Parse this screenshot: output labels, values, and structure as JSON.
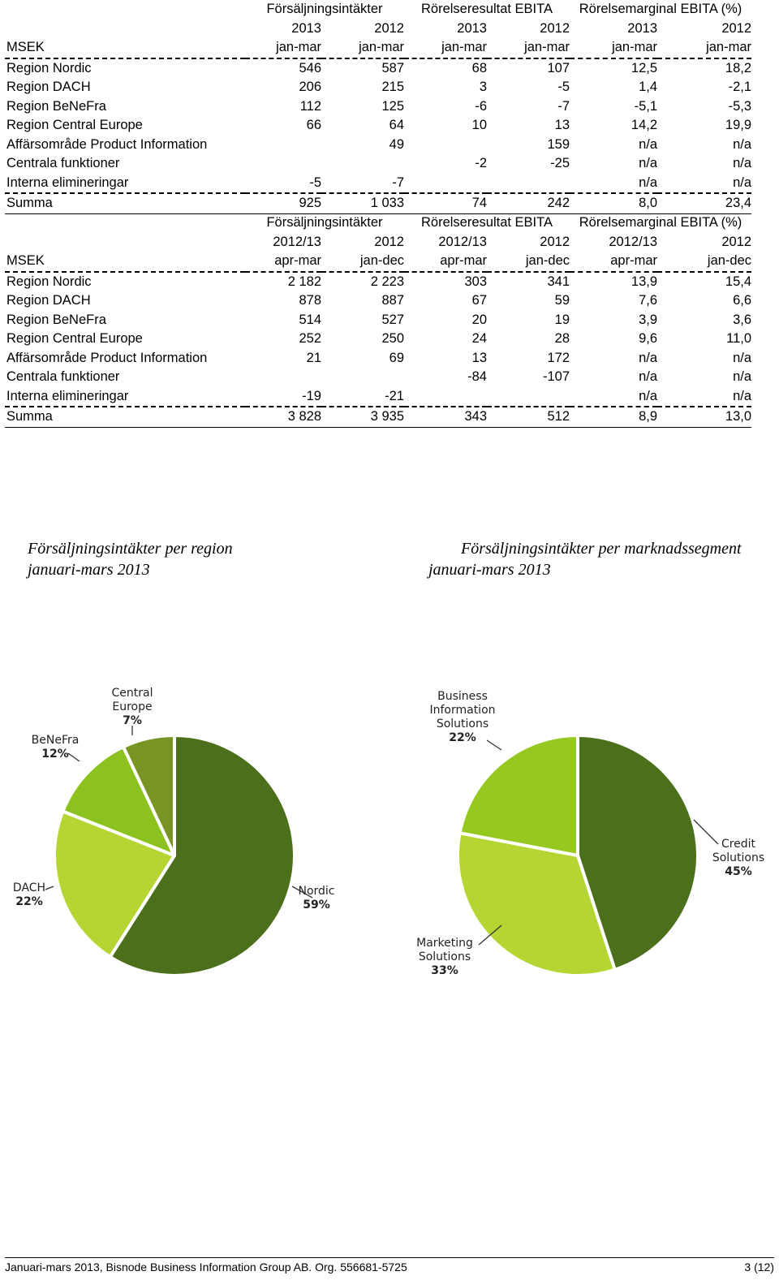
{
  "table1": {
    "group_headers": [
      "Försäljningsintäkter",
      "Rörelseresultat EBITA",
      "Rörelsemarginal EBITA (%)"
    ],
    "years": [
      "2013",
      "2012",
      "2013",
      "2012",
      "2013",
      "2012"
    ],
    "row_header": "MSEK",
    "periods": [
      "jan-mar",
      "jan-mar",
      "jan-mar",
      "jan-mar",
      "jan-mar",
      "jan-mar"
    ],
    "rows": [
      {
        "label": "Region Nordic",
        "values": [
          "546",
          "587",
          "68",
          "107",
          "12,5",
          "18,2"
        ]
      },
      {
        "label": "Region DACH",
        "values": [
          "206",
          "215",
          "3",
          "-5",
          "1,4",
          "-2,1"
        ]
      },
      {
        "label": "Region BeNeFra",
        "values": [
          "112",
          "125",
          "-6",
          "-7",
          "-5,1",
          "-5,3"
        ]
      },
      {
        "label": "Region Central Europe",
        "values": [
          "66",
          "64",
          "10",
          "13",
          "14,2",
          "19,9"
        ]
      },
      {
        "label": "Affärsområde Product Information",
        "values": [
          "",
          "49",
          "",
          "159",
          "n/a",
          "n/a"
        ]
      },
      {
        "label": "Centrala funktioner",
        "values": [
          "",
          "",
          "-2",
          "-25",
          "n/a",
          "n/a"
        ]
      },
      {
        "label": "Interna elimineringar",
        "values": [
          "-5",
          "-7",
          "",
          "",
          "n/a",
          "n/a"
        ]
      },
      {
        "label": "Summa",
        "values": [
          "925",
          "1 033",
          "74",
          "242",
          "8,0",
          "23,4"
        ]
      }
    ]
  },
  "table2": {
    "group_headers": [
      "Försäljningsintäkter",
      "Rörelseresultat EBITA",
      "Rörelsemarginal EBITA (%)"
    ],
    "years": [
      "2012/13",
      "2012",
      "2012/13",
      "2012",
      "2012/13",
      "2012"
    ],
    "row_header": "MSEK",
    "periods": [
      "apr-mar",
      "jan-dec",
      "apr-mar",
      "jan-dec",
      "apr-mar",
      "jan-dec"
    ],
    "rows": [
      {
        "label": "Region Nordic",
        "values": [
          "2 182",
          "2 223",
          "303",
          "341",
          "13,9",
          "15,4"
        ]
      },
      {
        "label": "Region DACH",
        "values": [
          "878",
          "887",
          "67",
          "59",
          "7,6",
          "6,6"
        ]
      },
      {
        "label": "Region BeNeFra",
        "values": [
          "514",
          "527",
          "20",
          "19",
          "3,9",
          "3,6"
        ]
      },
      {
        "label": "Region Central Europe",
        "values": [
          "252",
          "250",
          "24",
          "28",
          "9,6",
          "11,0"
        ]
      },
      {
        "label": "Affärsområde Product Information",
        "values": [
          "21",
          "69",
          "13",
          "172",
          "n/a",
          "n/a"
        ]
      },
      {
        "label": "Centrala funktioner",
        "values": [
          "",
          "",
          "-84",
          "-107",
          "n/a",
          "n/a"
        ]
      },
      {
        "label": "Interna elimineringar",
        "values": [
          "-19",
          "-21",
          "",
          "",
          "n/a",
          "n/a"
        ]
      },
      {
        "label": "Summa",
        "values": [
          "3 828",
          "3 935",
          "343",
          "512",
          "8,9",
          "13,0"
        ]
      }
    ]
  },
  "chart_data": [
    {
      "type": "pie",
      "title": "Försäljningsintäkter per region",
      "subtitle": "januari-mars 2013",
      "slices": [
        {
          "label": "Nordic",
          "label_lines": [
            "Nordic"
          ],
          "value": 59,
          "value_text": "59%",
          "color": "#4c6f1b"
        },
        {
          "label": "DACH",
          "label_lines": [
            "DACH"
          ],
          "value": 22,
          "value_text": "22%",
          "color": "#b5d632"
        },
        {
          "label": "BeNeFra",
          "label_lines": [
            "BeNeFra"
          ],
          "value": 12,
          "value_text": "12%",
          "color": "#8cc21f"
        },
        {
          "label": "Central Europe",
          "label_lines": [
            "Central",
            "Europe"
          ],
          "value": 7,
          "value_text": "7%",
          "color": "#779425"
        }
      ]
    },
    {
      "type": "pie",
      "title": "Försäljningsintäkter per marknadssegment",
      "subtitle": "januari-mars 2013",
      "slices": [
        {
          "label": "Credit Solutions",
          "label_lines": [
            "Credit",
            "Solutions"
          ],
          "value": 45,
          "value_text": "45%",
          "color": "#4c6f1b"
        },
        {
          "label": "Marketing Solutions",
          "label_lines": [
            "Marketing",
            "Solutions"
          ],
          "value": 33,
          "value_text": "33%",
          "color": "#b5d632"
        },
        {
          "label": "Business Information Solutions",
          "label_lines": [
            "Business",
            "Information",
            "Solutions"
          ],
          "value": 22,
          "value_text": "22%",
          "color": "#96c81f"
        }
      ]
    }
  ],
  "footer": {
    "left": "Januari-mars 2013, Bisnode Business Information Group AB. Org. 556681-5725",
    "right": "3 (12)"
  }
}
